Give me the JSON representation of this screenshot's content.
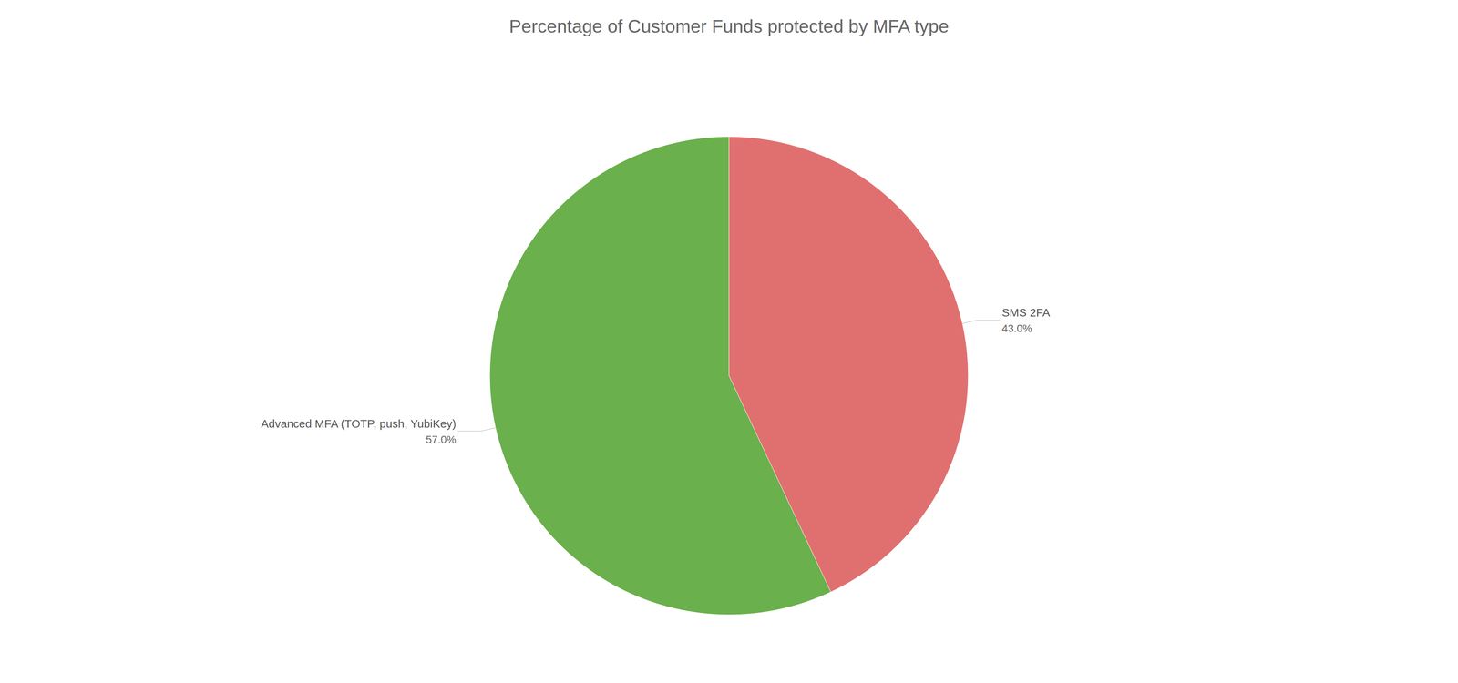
{
  "chart_data": {
    "type": "pie",
    "title": "Percentage of Customer Funds protected by MFA type",
    "categories": [
      "Advanced MFA (TOTP, push, YubiKey)",
      "SMS 2FA"
    ],
    "values": [
      57.0,
      43.0
    ],
    "value_labels": [
      "57.0%",
      "43.0%"
    ],
    "colors": [
      "#6ab04c",
      "#e07070"
    ]
  }
}
